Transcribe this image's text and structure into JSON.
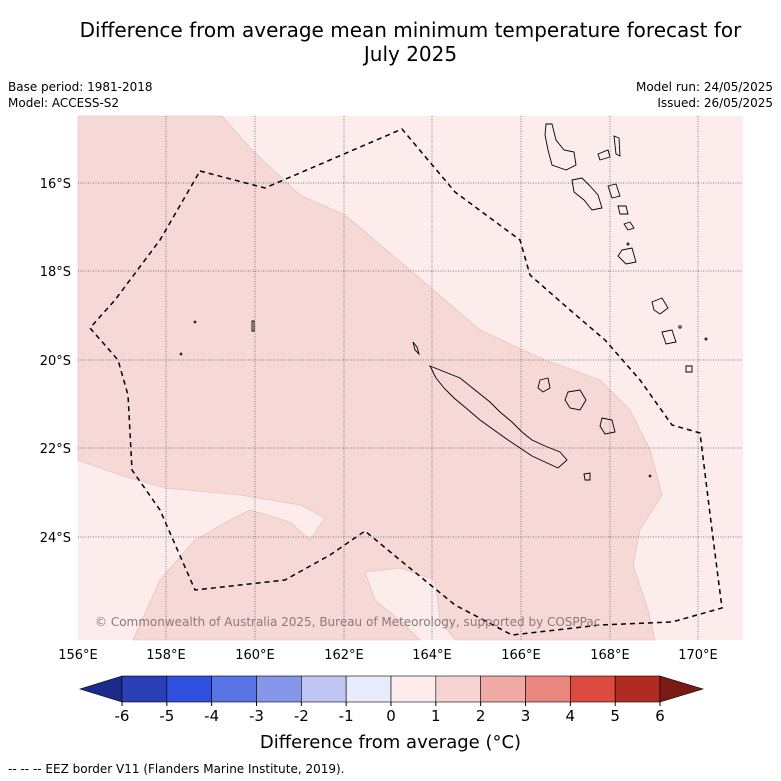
{
  "title_line1": "Difference from average mean minimum temperature forecast for",
  "title_line2": "July 2025",
  "base_period": "Base period: 1981-2018",
  "model": "Model: ACCESS-S2",
  "model_run": "Model run: 24/05/2025",
  "issued": "Issued: 26/05/2025",
  "copyright": "© Commonwealth of Australia 2025, Bureau of Meteorology, supported by COSPPac",
  "x_ticks": [
    "156°E",
    "158°E",
    "160°E",
    "162°E",
    "164°E",
    "166°E",
    "168°E",
    "170°E"
  ],
  "y_ticks": [
    "16°S",
    "18°S",
    "20°S",
    "22°S",
    "24°S"
  ],
  "colorbar": {
    "label": "Difference from average (°C)",
    "ticks": [
      "-6",
      "-5",
      "-4",
      "-3",
      "-2",
      "-1",
      "0",
      "1",
      "2",
      "3",
      "4",
      "5",
      "6"
    ],
    "colors": [
      "#1c2a8c",
      "#2a3fb5",
      "#3050e0",
      "#5a74e6",
      "#8696ea",
      "#c0c6f4",
      "#e8ebfa",
      "#fceceb",
      "#f6d4d2",
      "#efaaa6",
      "#e8867f",
      "#dc4b40",
      "#b02b22",
      "#7a1a14"
    ]
  },
  "legend_note": "-- -- -- EEZ border V11 (Flanders Marine Institute, 2019).",
  "colors": {
    "warm_light": "#fceceb",
    "warm_mid": "#f6d8d6"
  }
}
